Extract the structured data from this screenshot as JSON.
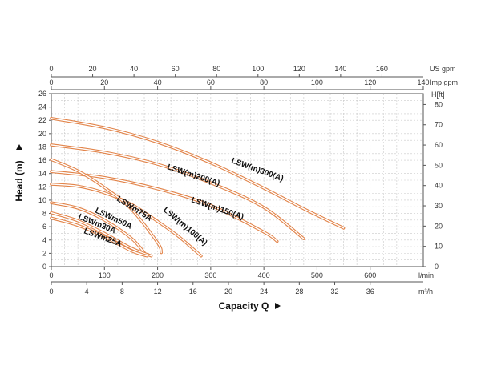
{
  "chart_data": {
    "type": "line",
    "xlabel": "Capacity Q",
    "ylabel": "Head (m)",
    "primary_x": {
      "unit": "l/min",
      "range": [
        0,
        700
      ],
      "ticks": [
        0,
        100,
        200,
        300,
        400,
        500,
        600
      ]
    },
    "top_axis_us": {
      "unit": "US gpm",
      "range": [
        0,
        180
      ],
      "ticks": [
        0,
        20,
        40,
        60,
        80,
        100,
        120,
        140,
        160
      ]
    },
    "top_axis_imp": {
      "unit": "Imp gpm",
      "range": [
        0,
        140
      ],
      "ticks": [
        0,
        20,
        40,
        60,
        80,
        100,
        120,
        140
      ]
    },
    "bottom_axis_m3h": {
      "unit": "m³/h",
      "range": [
        0,
        42
      ],
      "ticks": [
        0,
        4,
        8,
        12,
        16,
        20,
        24,
        28,
        32,
        36
      ]
    },
    "y_left": {
      "unit": "",
      "range": [
        0,
        26
      ],
      "ticks": [
        0,
        2,
        4,
        6,
        8,
        10,
        12,
        14,
        16,
        18,
        20,
        22,
        24,
        26
      ]
    },
    "y_right": {
      "unit": "H[ft]",
      "range": [
        0,
        85.3
      ],
      "ticks": [
        0,
        10,
        20,
        30,
        40,
        50,
        60,
        70,
        80
      ]
    },
    "grid": true,
    "line_color": "#e2844a",
    "series": [
      {
        "name": "LSW(m)300(A)",
        "x": [
          0,
          100,
          200,
          300,
          400,
          480,
          550
        ],
        "y": [
          22.3,
          20.9,
          18.7,
          15.6,
          11.8,
          8.5,
          5.8
        ]
      },
      {
        "name": "LSW(m)200(A)",
        "x": [
          0,
          100,
          200,
          300,
          400,
          475
        ],
        "y": [
          18.3,
          17.2,
          15.4,
          12.6,
          8.9,
          4.2
        ]
      },
      {
        "name": "LSW(m)150(A)",
        "x": [
          0,
          100,
          200,
          300,
          400,
          425
        ],
        "y": [
          14.3,
          13.4,
          11.7,
          9.2,
          5.2,
          3.8
        ]
      },
      {
        "name": "LSW(m)100(A)",
        "x": [
          0,
          50,
          100,
          150,
          200,
          240,
          282
        ],
        "y": [
          12.4,
          12.1,
          11.1,
          9.4,
          6.8,
          4.5,
          1.6
        ]
      },
      {
        "name": "LSWm75A",
        "x": [
          0,
          50,
          100,
          150,
          200,
          207
        ],
        "y": [
          16.1,
          14.4,
          11.9,
          8.7,
          3.6,
          2.1
        ]
      },
      {
        "name": "LSWm50A",
        "x": [
          0,
          50,
          100,
          150,
          175
        ],
        "y": [
          9.6,
          8.8,
          7.0,
          4.3,
          2.1
        ]
      },
      {
        "name": "LSWm30A",
        "x": [
          0,
          50,
          100,
          150,
          188
        ],
        "y": [
          8.1,
          6.9,
          5.0,
          2.8,
          1.6
        ]
      },
      {
        "name": "LSWm25A",
        "x": [
          0,
          50,
          100,
          150,
          180
        ],
        "y": [
          7.3,
          6.2,
          4.5,
          2.4,
          1.6
        ]
      }
    ]
  }
}
